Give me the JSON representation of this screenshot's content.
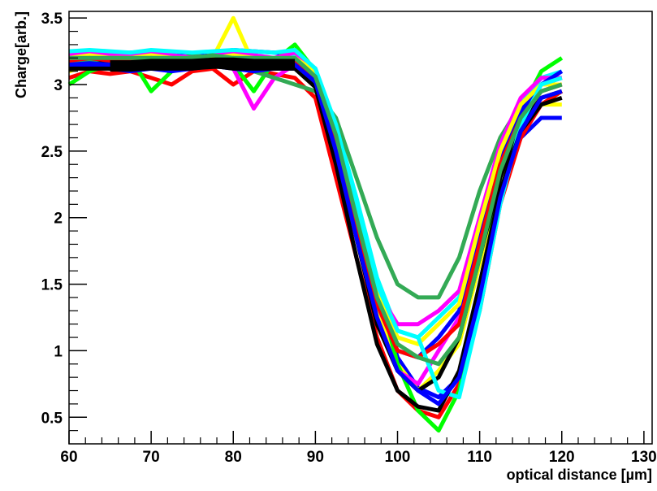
{
  "chart_data": {
    "type": "line",
    "title": "",
    "xlabel": "optical distance [µm]",
    "ylabel": "Charge[arb.]",
    "xlim": [
      60,
      131
    ],
    "ylim": [
      0.3,
      3.55
    ],
    "x_ticks": [
      60,
      70,
      80,
      90,
      100,
      110,
      120,
      130
    ],
    "x_tick_labels": [
      "60",
      "70",
      "80",
      "90",
      "100",
      "110",
      "120",
      "130"
    ],
    "y_ticks": [
      0.5,
      1,
      1.5,
      2,
      2.5,
      3,
      3.5
    ],
    "y_tick_labels": [
      "0.5",
      "1",
      "1.5",
      "2",
      "2.5",
      "3",
      "3.5"
    ],
    "grid": false,
    "legend": "none",
    "x": [
      60,
      62.5,
      65,
      67.5,
      70,
      72.5,
      75,
      77.5,
      80,
      82.5,
      85,
      87.5,
      90,
      92.5,
      95,
      97.5,
      100,
      102.5,
      105,
      107.5,
      110,
      112.5,
      115,
      117.5,
      120
    ],
    "series": [
      {
        "color": "#0000ff",
        "values": [
          3.25,
          3.24,
          3.23,
          3.24,
          3.25,
          3.24,
          3.23,
          3.24,
          3.26,
          3.25,
          3.24,
          3.23,
          3.0,
          2.6,
          2.0,
          1.4,
          0.95,
          0.72,
          0.65,
          0.8,
          1.5,
          2.2,
          2.6,
          2.75,
          2.75
        ]
      },
      {
        "color": "#ff0000",
        "values": [
          3.05,
          3.1,
          3.08,
          3.1,
          3.05,
          3.0,
          3.1,
          3.12,
          3.0,
          3.1,
          3.08,
          3.05,
          2.9,
          2.3,
          1.7,
          1.1,
          0.7,
          0.55,
          0.5,
          0.75,
          1.3,
          2.1,
          2.6,
          2.85,
          2.95
        ]
      },
      {
        "color": "#ffff00",
        "values": [
          3.1,
          3.15,
          3.12,
          3.15,
          3.18,
          3.15,
          3.12,
          3.2,
          3.5,
          3.15,
          3.12,
          3.18,
          3.05,
          2.5,
          1.9,
          1.3,
          0.9,
          0.7,
          0.85,
          1.05,
          1.65,
          2.3,
          2.7,
          2.85,
          2.85
        ]
      },
      {
        "color": "#00ff00",
        "values": [
          3.0,
          3.1,
          3.15,
          3.2,
          2.95,
          3.1,
          3.15,
          3.2,
          3.15,
          2.95,
          3.18,
          3.3,
          3.1,
          2.7,
          2.1,
          1.5,
          0.9,
          0.55,
          0.4,
          0.7,
          1.4,
          2.3,
          2.8,
          3.1,
          3.2
        ]
      },
      {
        "color": "#ff00ff",
        "values": [
          3.15,
          3.18,
          3.2,
          3.22,
          3.18,
          3.2,
          3.22,
          3.2,
          3.12,
          2.82,
          3.05,
          3.15,
          3.0,
          2.45,
          1.85,
          1.25,
          0.85,
          0.75,
          1.0,
          1.25,
          1.85,
          2.45,
          2.8,
          3.0,
          3.05
        ]
      },
      {
        "color": "#00ffff",
        "values": [
          3.2,
          3.22,
          3.2,
          3.22,
          3.25,
          3.22,
          3.2,
          3.22,
          3.2,
          3.18,
          3.2,
          3.22,
          3.08,
          2.7,
          2.15,
          1.55,
          1.15,
          1.1,
          1.25,
          1.4,
          1.95,
          2.5,
          2.85,
          3.05,
          3.1
        ]
      },
      {
        "color": "#000000",
        "values": [
          3.18,
          3.18,
          3.15,
          3.18,
          3.18,
          3.18,
          3.18,
          3.2,
          3.18,
          3.18,
          3.16,
          3.15,
          3.02,
          2.5,
          1.85,
          1.2,
          0.85,
          0.7,
          0.8,
          1.1,
          1.7,
          2.3,
          2.7,
          2.9,
          2.95
        ]
      },
      {
        "color": "#33aa55",
        "values": [
          3.15,
          3.18,
          3.2,
          3.22,
          3.2,
          3.18,
          3.22,
          3.2,
          3.18,
          3.1,
          3.05,
          3.0,
          2.95,
          2.75,
          2.3,
          1.85,
          1.5,
          1.4,
          1.4,
          1.7,
          2.2,
          2.6,
          2.85,
          3.0,
          3.05
        ]
      },
      {
        "color": "#ff00ff",
        "values": [
          3.22,
          3.24,
          3.22,
          3.22,
          3.24,
          3.22,
          3.2,
          3.22,
          3.24,
          3.22,
          3.2,
          3.24,
          3.12,
          2.6,
          2.0,
          1.45,
          1.2,
          1.2,
          1.3,
          1.45,
          2.0,
          2.55,
          2.9,
          3.05,
          3.05
        ]
      },
      {
        "color": "#0000ff",
        "values": [
          3.12,
          3.14,
          3.12,
          3.1,
          3.12,
          3.1,
          3.12,
          3.14,
          3.12,
          3.1,
          3.12,
          3.12,
          3.0,
          2.55,
          1.95,
          1.35,
          1.0,
          0.95,
          1.1,
          1.3,
          1.9,
          2.45,
          2.8,
          3.0,
          3.1
        ]
      },
      {
        "color": "#ffff00",
        "values": [
          3.2,
          3.22,
          3.2,
          3.2,
          3.22,
          3.2,
          3.18,
          3.2,
          3.22,
          3.2,
          3.18,
          3.2,
          3.1,
          2.65,
          2.05,
          1.45,
          1.1,
          1.05,
          1.2,
          1.35,
          1.95,
          2.5,
          2.85,
          3.0,
          3.0
        ]
      },
      {
        "color": "#ff0000",
        "values": [
          3.18,
          3.2,
          3.18,
          3.18,
          3.2,
          3.18,
          3.16,
          3.18,
          3.2,
          3.18,
          3.16,
          3.18,
          3.05,
          2.55,
          1.95,
          1.35,
          1.0,
          0.95,
          1.05,
          1.2,
          1.8,
          2.4,
          2.75,
          2.95,
          3.0
        ]
      },
      {
        "color": "#00ffff",
        "values": [
          3.25,
          3.26,
          3.25,
          3.24,
          3.26,
          3.25,
          3.24,
          3.25,
          3.26,
          3.25,
          3.24,
          3.26,
          3.12,
          2.7,
          2.1,
          1.5,
          1.15,
          1.1,
          0.7,
          0.65,
          1.3,
          2.1,
          2.7,
          3.0,
          3.05
        ]
      },
      {
        "color": "#000000",
        "values": [
          3.12,
          3.12,
          3.12,
          3.14,
          3.12,
          3.12,
          3.12,
          3.14,
          3.12,
          3.12,
          3.12,
          3.12,
          2.98,
          2.4,
          1.7,
          1.05,
          0.7,
          0.58,
          0.55,
          0.85,
          1.5,
          2.2,
          2.65,
          2.85,
          2.9
        ]
      },
      {
        "color": "#0000ff",
        "values": [
          3.15,
          3.16,
          3.15,
          3.15,
          3.16,
          3.15,
          3.14,
          3.16,
          3.15,
          3.15,
          3.14,
          3.15,
          3.02,
          2.5,
          1.85,
          1.25,
          0.85,
          0.7,
          0.6,
          0.8,
          1.4,
          2.15,
          2.65,
          2.9,
          2.95
        ]
      },
      {
        "color": "#33aa55",
        "values": [
          3.2,
          3.2,
          3.2,
          3.2,
          3.2,
          3.2,
          3.2,
          3.22,
          3.2,
          3.2,
          3.2,
          3.2,
          3.06,
          2.62,
          2.0,
          1.4,
          1.05,
          0.95,
          0.9,
          1.1,
          1.7,
          2.35,
          2.75,
          2.95,
          3.0
        ]
      }
    ],
    "mean_band": {
      "color": "#000000",
      "x": [
        65,
        67.5,
        70,
        72.5,
        75,
        77.5,
        80,
        82.5,
        85,
        87.5
      ],
      "values": [
        3.14,
        3.14,
        3.15,
        3.15,
        3.15,
        3.16,
        3.16,
        3.15,
        3.15,
        3.15
      ]
    }
  }
}
